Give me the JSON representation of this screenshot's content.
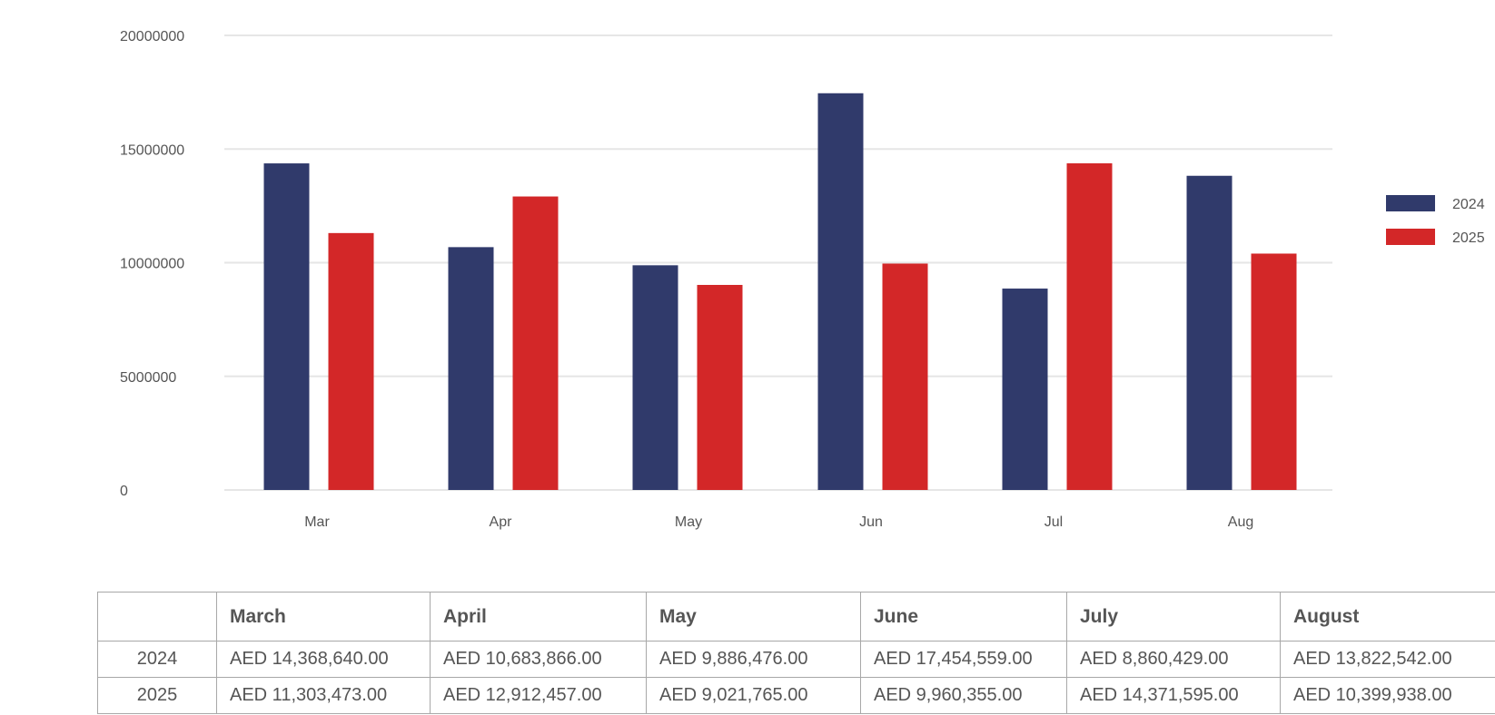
{
  "chart_data": {
    "type": "bar",
    "categories": [
      "Mar",
      "Apr",
      "May",
      "Jun",
      "Jul",
      "Aug"
    ],
    "series": [
      {
        "name": "2024",
        "color": "#303a6b",
        "values": [
          14368640,
          10683866,
          9886476,
          17454559,
          8860429,
          13822542
        ]
      },
      {
        "name": "2025",
        "color": "#d32728",
        "values": [
          11303473,
          12912457,
          9021765,
          9960355,
          14371595,
          10399938
        ]
      }
    ],
    "yticks": [
      "20000000",
      "15000000",
      "10000000",
      "5000000",
      "0"
    ],
    "ylim": [
      0,
      20000000
    ],
    "grid": true,
    "legend_position": "right"
  },
  "table": {
    "headers": [
      "",
      "March",
      "April",
      "May",
      "June",
      "July",
      "August"
    ],
    "rows": [
      {
        "year": "2024",
        "cells": [
          "AED 14,368,640.00",
          "AED 10,683,866.00",
          "AED 9,886,476.00",
          "AED 17,454,559.00",
          "AED 8,860,429.00",
          "AED 13,822,542.00"
        ]
      },
      {
        "year": "2025",
        "cells": [
          "AED 11,303,473.00",
          "AED 12,912,457.00",
          "AED 9,021,765.00",
          "AED 9,960,355.00",
          "AED 14,371,595.00",
          "AED 10,399,938.00"
        ]
      }
    ]
  }
}
